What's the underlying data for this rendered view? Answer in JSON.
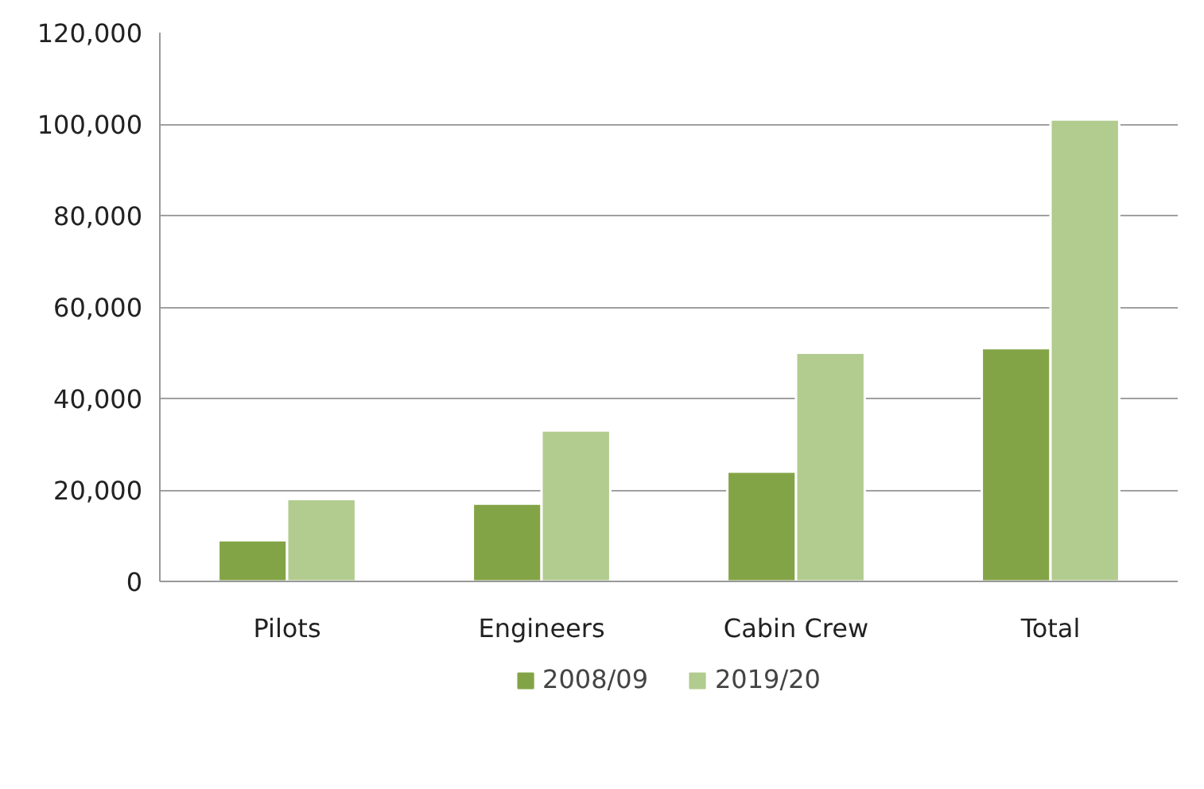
{
  "chart_data": {
    "type": "bar",
    "categories": [
      "Pilots",
      "Engineers",
      "Cabin Crew",
      "Total"
    ],
    "series": [
      {
        "name": "2008/09",
        "color": "#83a446",
        "values": [
          9000,
          17000,
          24000,
          51000
        ]
      },
      {
        "name": "2019/20",
        "color": "#b2cb8f",
        "values": [
          18000,
          33000,
          50000,
          101000
        ]
      }
    ],
    "ylim": [
      0,
      120000
    ],
    "yticks": [
      {
        "value": 0,
        "label": "0"
      },
      {
        "value": 20000,
        "label": "20,000"
      },
      {
        "value": 40000,
        "label": "40,000"
      },
      {
        "value": 60000,
        "label": "60,000"
      },
      {
        "value": 80000,
        "label": "80,000"
      },
      {
        "value": 100000,
        "label": "100,000"
      },
      {
        "value": 120000,
        "label": "120,000"
      }
    ],
    "grid": "y",
    "legend": "bottom"
  }
}
